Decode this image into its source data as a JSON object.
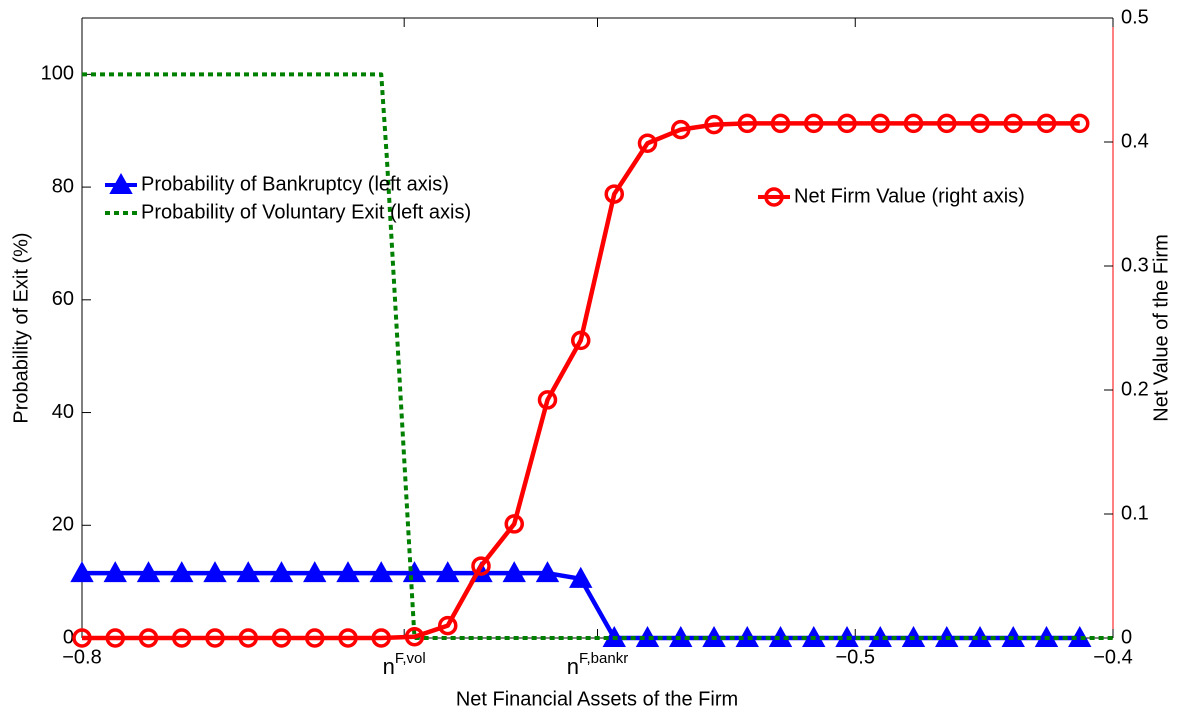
{
  "chart_data": {
    "type": "line",
    "x_label": "Net Financial Assets of the Firm",
    "y_label": "Probability of Exit (%)",
    "y2_label": "Net Value of the Firm",
    "x": [
      -0.8,
      -0.7871,
      -0.7742,
      -0.7613,
      -0.7484,
      -0.7355,
      -0.7226,
      -0.7097,
      -0.6968,
      -0.6839,
      -0.671,
      -0.6581,
      -0.6452,
      -0.6323,
      -0.6194,
      -0.6065,
      -0.5935,
      -0.5806,
      -0.5677,
      -0.5548,
      -0.5419,
      -0.529,
      -0.5161,
      -0.5032,
      -0.4903,
      -0.4774,
      -0.4645,
      -0.4516,
      -0.4387,
      -0.4258,
      -0.4129
    ],
    "series": [
      {
        "name": "Probability of Bankruptcy (left axis)",
        "color": "#0000ff",
        "marker": "triangle",
        "dashed": false,
        "values": [
          11.5,
          11.5,
          11.5,
          11.5,
          11.5,
          11.5,
          11.5,
          11.5,
          11.5,
          11.5,
          11.5,
          11.5,
          11.5,
          11.5,
          11.5,
          10.5,
          0,
          0,
          0,
          0,
          0,
          0,
          0,
          0,
          0,
          0,
          0,
          0,
          0,
          0,
          0
        ]
      },
      {
        "name": "Probability of Voluntary Exit (left axis)",
        "color": "#008000",
        "marker": "none",
        "dashed": true,
        "x": [
          -0.8,
          -0.6839,
          -0.6817,
          -0.671,
          -0.4
        ],
        "values": [
          100,
          100,
          85,
          0,
          0
        ]
      },
      {
        "name": "Net Firm Value (right axis)",
        "color": "#ff0000",
        "marker": "circle",
        "dashed": false,
        "axis": "y2",
        "values": [
          0,
          0,
          0,
          0,
          0,
          0,
          0,
          0,
          0,
          0,
          0.001,
          0.01,
          0.058,
          0.092,
          0.192,
          0.24,
          0.358,
          0.399,
          0.41,
          0.414,
          0.415,
          0.415,
          0.415,
          0.415,
          0.415,
          0.415,
          0.415,
          0.415,
          0.415,
          0.415,
          0.415
        ]
      }
    ],
    "xlim": [
      -0.8,
      -0.4
    ],
    "xticks": [
      {
        "value": -0.8,
        "label": "−0.8"
      },
      {
        "value": -0.675,
        "label": "n",
        "label_sup": "F,vol"
      },
      {
        "value": -0.6,
        "label": "n",
        "label_sup": "F,bankr"
      },
      {
        "value": -0.5,
        "label": "−0.5"
      },
      {
        "value": -0.4,
        "label": "−0.4"
      }
    ],
    "ylim": [
      0,
      110
    ],
    "yticks": [
      0,
      20,
      40,
      60,
      80,
      100
    ],
    "y2lim": [
      0,
      0.5
    ],
    "y2ticks": [
      0,
      0.1,
      0.2,
      0.3,
      0.4,
      0.5
    ],
    "y2_color": "#ff0000",
    "grid": false
  }
}
